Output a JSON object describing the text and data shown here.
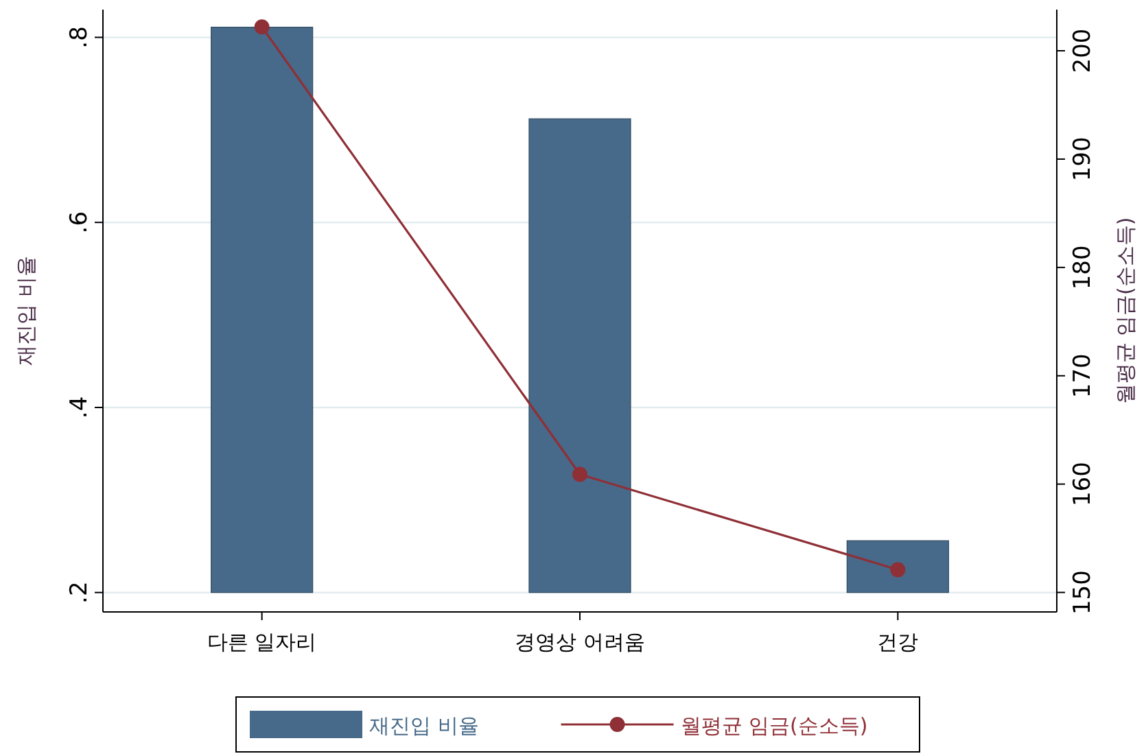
{
  "chart_data": {
    "type": "bar",
    "categories": [
      "다른 일자리",
      "경영상 어려움",
      "건강"
    ],
    "ylabel": "재진입 비율",
    "y2label": "월평균 임금(순소득)",
    "ylim": [
      0.179,
      0.83
    ],
    "yticks": [
      {
        "value": 0.2,
        "label": ".2"
      },
      {
        "value": 0.4,
        "label": ".4"
      },
      {
        "value": 0.6,
        "label": ".6"
      },
      {
        "value": 0.8,
        "label": ".8"
      }
    ],
    "y2lim": [
      148.2,
      203.8
    ],
    "y2ticks": [
      150,
      160,
      170,
      180,
      190,
      200
    ],
    "grid": "y",
    "legend": "bottom",
    "series": [
      {
        "name": "재진입 비율",
        "color": "#476a8a",
        "base": [
          0.2,
          0.2,
          0.2
        ],
        "values": [
          0.611,
          0.512,
          0.056
        ]
      },
      {
        "name": "월평균 임금(순소득)",
        "type": "line",
        "axis": "y2",
        "color": "#8f2f36",
        "marker": "circle",
        "values": [
          202.2,
          160.9,
          152.1
        ]
      }
    ]
  }
}
